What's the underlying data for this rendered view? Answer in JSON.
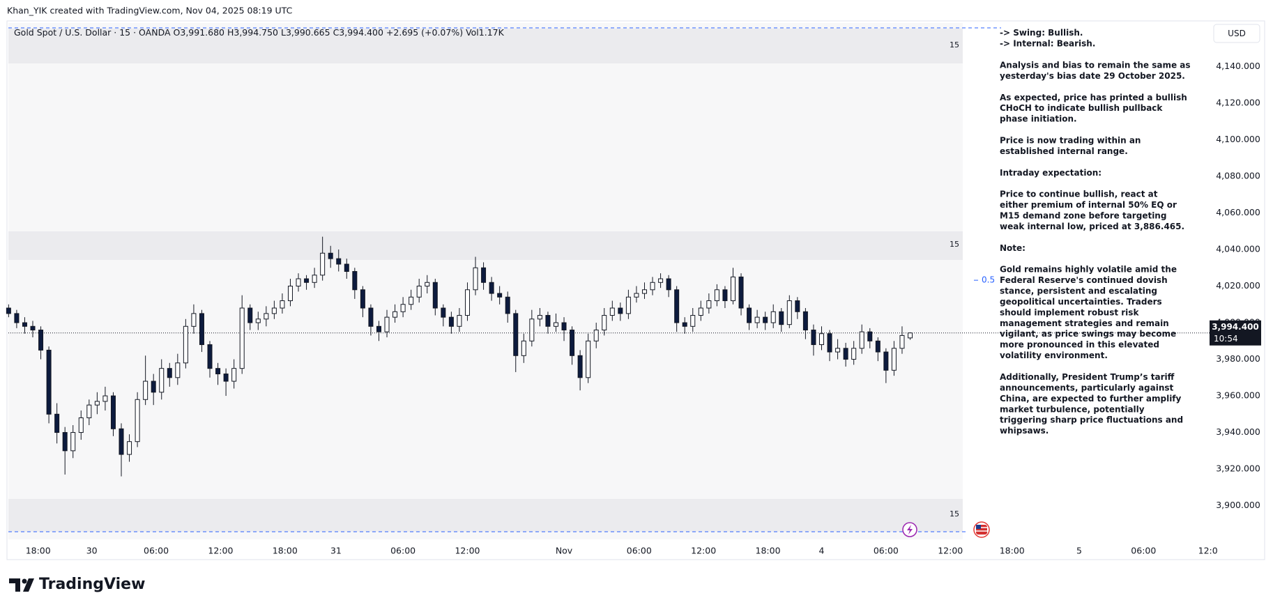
{
  "header": "Khan_YIK created with TradingView.com, Nov 04, 2025 08:19 UTC",
  "footer": "TradingView",
  "chart_data": {
    "type": "candlestick",
    "legend": {
      "symbol": "Gold Spot / U.S. Dollar · 15 · OANDA",
      "open": "O3,991.680",
      "high": "H3,994.750",
      "low": "L3,990.665",
      "close": "C3,994.400",
      "change": "+2.695 (+0.07%)",
      "volume": "Vol1.17K"
    },
    "currency": "USD",
    "x": [
      -11,
      -8,
      -5,
      -2,
      1,
      4,
      7,
      10,
      13,
      16,
      19,
      22,
      25,
      28,
      31,
      34,
      37,
      40,
      43,
      46,
      49,
      52,
      55,
      58,
      61,
      64,
      67,
      70,
      73,
      76,
      79,
      82,
      85,
      88,
      91,
      94,
      97,
      100,
      103,
      106,
      109,
      112,
      115,
      118,
      121,
      124,
      127,
      130,
      133,
      136,
      139,
      142,
      145,
      148,
      151,
      154,
      157,
      160,
      163,
      166,
      169,
      172,
      175,
      178,
      181,
      184,
      187,
      190,
      193,
      196,
      199,
      202,
      205,
      208,
      211,
      214,
      217,
      220,
      223,
      226,
      229,
      232,
      235,
      238,
      241,
      244,
      247,
      250,
      253,
      256,
      259,
      262,
      265,
      268,
      271,
      274,
      277,
      280,
      283,
      286,
      289,
      292,
      295,
      298,
      301,
      304,
      307,
      310,
      313,
      316,
      319,
      322,
      325
    ],
    "open": [
      4008,
      4005,
      4000,
      3998,
      3996,
      3985,
      3950,
      3940,
      3930,
      3940,
      3948,
      3955,
      3957,
      3960,
      3942,
      3928,
      3935,
      3958,
      3968,
      3962,
      3975,
      3970,
      3978,
      3998,
      4005,
      3988,
      3975,
      3972,
      3968,
      3975,
      4008,
      4000,
      4002,
      4005,
      4008,
      4012,
      4020,
      4024,
      4022,
      4026,
      4038,
      4035,
      4032,
      4028,
      4018,
      4008,
      3998,
      3995,
      4003,
      4006,
      4010,
      4014,
      4020,
      4022,
      4008,
      4003,
      3998,
      4004,
      4018,
      4030,
      4022,
      4016,
      4014,
      4005,
      3982,
      3990,
      4002,
      4004,
      3998,
      4000,
      3996,
      3982,
      3970,
      3990,
      3996,
      4004,
      4008,
      4005,
      4014,
      4016,
      4018,
      4022,
      4024,
      4018,
      4000,
      3998,
      4004,
      4008,
      4012,
      4018,
      4012,
      4025,
      4008,
      4000,
      4003,
      4000,
      4006,
      3999,
      4012,
      4006,
      3996,
      3988,
      3994,
      3984,
      3986,
      3980,
      3986,
      3995,
      3990,
      3984,
      3974,
      3986,
      3991.68
    ],
    "high": [
      4010,
      4007,
      4003,
      4001,
      3998,
      3987,
      3956,
      3943,
      3944,
      3952,
      3958,
      3962,
      3965,
      3962,
      3945,
      3939,
      3962,
      3982,
      3972,
      3980,
      3978,
      3983,
      4002,
      4010,
      4007,
      3990,
      3978,
      3975,
      3980,
      4015,
      4010,
      4006,
      4009,
      4012,
      4016,
      4024,
      4027,
      4026,
      4030,
      4047,
      4042,
      4040,
      4035,
      4030,
      4020,
      4010,
      4001,
      4007,
      4010,
      4014,
      4018,
      4024,
      4026,
      4024,
      4010,
      4006,
      4008,
      4022,
      4036,
      4033,
      4025,
      4020,
      4017,
      4007,
      3994,
      4007,
      4008,
      4006,
      4005,
      4003,
      3998,
      3985,
      3994,
      4000,
      4008,
      4012,
      4011,
      4018,
      4020,
      4022,
      4025,
      4027,
      4026,
      4020,
      4003,
      4008,
      4012,
      4016,
      4021,
      4020,
      4030,
      4027,
      4010,
      4007,
      4006,
      4010,
      4008,
      4015,
      4014,
      4008,
      3999,
      3998,
      3996,
      3991,
      3989,
      3990,
      3999,
      3997,
      3992,
      3986,
      3990,
      3998,
      3994.75
    ],
    "low": [
      4003,
      3997,
      3994,
      3992,
      3980,
      3945,
      3934,
      3917,
      3926,
      3936,
      3944,
      3950,
      3952,
      3938,
      3916,
      3924,
      3932,
      3955,
      3955,
      3958,
      3965,
      3966,
      3975,
      3994,
      3984,
      3970,
      3966,
      3960,
      3964,
      3972,
      3996,
      3996,
      3998,
      4002,
      4005,
      4009,
      4017,
      4018,
      4019,
      4023,
      4030,
      4028,
      4024,
      4013,
      4003,
      3993,
      3990,
      3992,
      4000,
      4003,
      4007,
      4011,
      4016,
      4004,
      3998,
      3994,
      3995,
      4001,
      4015,
      4018,
      4012,
      4010,
      4000,
      3973,
      3978,
      3987,
      3998,
      3994,
      3995,
      3990,
      3977,
      3963,
      3967,
      3986,
      3993,
      4001,
      4001,
      4002,
      4011,
      4013,
      4015,
      4019,
      4014,
      3995,
      3994,
      3995,
      4001,
      4005,
      4009,
      4008,
      4010,
      4004,
      3996,
      3997,
      3996,
      3997,
      3995,
      3997,
      4002,
      3991,
      3982,
      3985,
      3979,
      3980,
      3976,
      3977,
      3983,
      3986,
      3979,
      3967,
      3971,
      3983,
      3990.665
    ],
    "close": [
      4005,
      4000,
      3998,
      3996,
      3985,
      3950,
      3940,
      3930,
      3940,
      3948,
      3955,
      3957,
      3960,
      3942,
      3928,
      3935,
      3958,
      3968,
      3962,
      3975,
      3970,
      3978,
      3998,
      4005,
      3988,
      3975,
      3972,
      3968,
      3975,
      4008,
      4000,
      4002,
      4005,
      4008,
      4012,
      4020,
      4024,
      4022,
      4026,
      4038,
      4035,
      4032,
      4028,
      4018,
      4008,
      3998,
      3995,
      4003,
      4006,
      4010,
      4014,
      4020,
      4022,
      4008,
      4003,
      3998,
      4004,
      4018,
      4030,
      4022,
      4016,
      4014,
      4005,
      3982,
      3990,
      4002,
      4004,
      3998,
      4000,
      3996,
      3982,
      3970,
      3990,
      3996,
      4004,
      4008,
      4005,
      4014,
      4016,
      4018,
      4022,
      4024,
      4018,
      4000,
      3998,
      4004,
      4008,
      4012,
      4018,
      4012,
      4025,
      4008,
      4000,
      4003,
      4000,
      4006,
      3999,
      4012,
      4006,
      3996,
      3988,
      3994,
      3984,
      3986,
      3980,
      3986,
      3995,
      3990,
      3984,
      3974,
      3986,
      3993,
      3994.4
    ],
    "up_color": "#ffffff",
    "down_color": "#0d1b3e",
    "wick_color": "#131722",
    "xlim": [
      -11.2,
      436.6
    ],
    "xticks": [
      {
        "value": 0,
        "label": "18:00"
      },
      {
        "value": 20,
        "label": "30"
      },
      {
        "value": 44,
        "label": "06:00"
      },
      {
        "value": 68,
        "label": "12:00"
      },
      {
        "value": 92,
        "label": "18:00"
      },
      {
        "value": 111,
        "label": "31"
      },
      {
        "value": 136,
        "label": "06:00"
      },
      {
        "value": 160,
        "label": "12:00"
      },
      {
        "value": 196,
        "label": "Nov"
      },
      {
        "value": 224,
        "label": "06:00"
      },
      {
        "value": 248,
        "label": "12:00"
      },
      {
        "value": 272,
        "label": "18:00"
      },
      {
        "value": 292,
        "label": "4"
      },
      {
        "value": 316,
        "label": "06:00"
      },
      {
        "value": 340,
        "label": "12:00"
      },
      {
        "value": 363,
        "label": "18:00"
      },
      {
        "value": 388,
        "label": "5"
      },
      {
        "value": 412,
        "label": "06:00"
      },
      {
        "value": 436,
        "label": "12:0"
      }
    ],
    "ylim": [
      3881.4,
      4163.8
    ],
    "yticks": [
      {
        "value": 4140,
        "label": "4,140.000"
      },
      {
        "value": 4120,
        "label": "4,120.000"
      },
      {
        "value": 4100,
        "label": "4,100.000"
      },
      {
        "value": 4080,
        "label": "4,080.000"
      },
      {
        "value": 4060,
        "label": "4,060.000"
      },
      {
        "value": 4040,
        "label": "4,040.000"
      },
      {
        "value": 4020,
        "label": "4,020.000"
      },
      {
        "value": 4000,
        "label": "4,000.000"
      },
      {
        "value": 3980,
        "label": "3,980.000"
      },
      {
        "value": 3960,
        "label": "3,960.000"
      },
      {
        "value": 3940,
        "label": "3,940.000"
      },
      {
        "value": 3920,
        "label": "3,920.000"
      },
      {
        "value": 3900,
        "label": "3,900.000"
      }
    ],
    "last_price": {
      "value": 3994.4,
      "label": "3,994.400"
    },
    "countdown": "10:54",
    "level": {
      "value": 4023.2,
      "label": "0.5"
    },
    "session_labels": [
      "15",
      "15",
      "15"
    ]
  },
  "note": [
    [
      "-> Swing: Bullish.",
      "-> Internal: Bearish."
    ],
    [
      "Analysis and bias to remain the same as",
      "yesterday's bias date 29 October 2025."
    ],
    [
      "As expected, price has printed a bullish",
      "CHoCH to indicate bullish pullback",
      "phase initiation."
    ],
    [
      "Price is now trading within an",
      "established internal range."
    ],
    [
      "Intraday expectation:"
    ],
    [
      "Price to continue bullish, react at",
      "either premium of internal 50% EQ or",
      "M15 demand zone before targeting",
      "weak internal low, priced at 3,886.465."
    ],
    [
      "Note:"
    ],
    [
      "Gold remains highly volatile amid the",
      "Federal Reserve's continued dovish",
      "stance, persistent and escalating",
      "geopolitical uncertainties. Traders",
      "should implement robust risk",
      "management strategies and remain",
      "vigilant, as price swings may become",
      "more pronounced in this elevated",
      "volatility environment."
    ],
    [
      "Additionally, President Trump’s tariff",
      "announcements, particularly against",
      "China, are expected to further amplify",
      "market turbulence, potentially",
      "triggering sharp price fluctuations and",
      "whipsaws."
    ]
  ]
}
